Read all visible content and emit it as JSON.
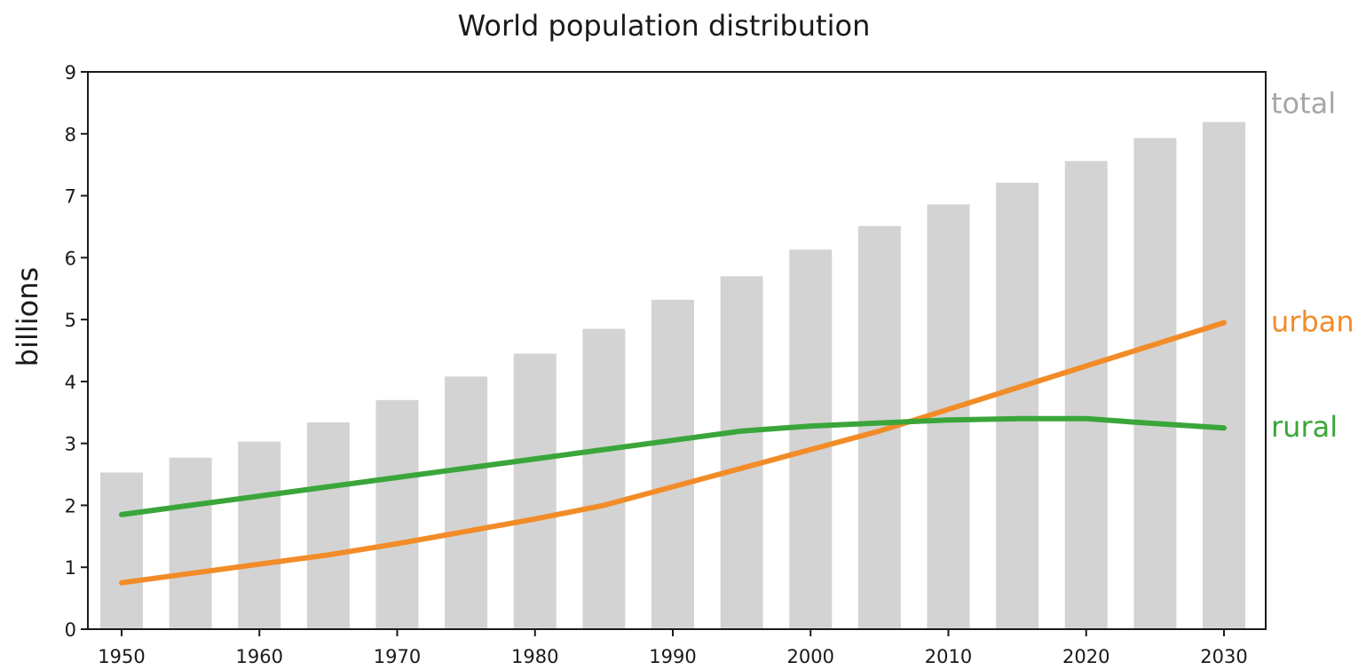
{
  "chart_data": {
    "type": "bar",
    "title": "World population distribution",
    "xlabel": "",
    "ylabel": "billions",
    "ylim": [
      0,
      9
    ],
    "xlim": [
      1948,
      2032
    ],
    "yticks": [
      0,
      1,
      2,
      3,
      4,
      5,
      6,
      7,
      8,
      9
    ],
    "xticks": [
      1950,
      1960,
      1970,
      1980,
      1990,
      2000,
      2010,
      2020,
      2030
    ],
    "grid": false,
    "legend": "right-side labels",
    "series": [
      {
        "name": "total",
        "kind": "bar",
        "color": "#d3d3d3",
        "x": [
          1950,
          1955,
          1960,
          1965,
          1970,
          1975,
          1980,
          1985,
          1990,
          1995,
          2000,
          2005,
          2010,
          2015,
          2020,
          2025,
          2030
        ],
        "values": [
          2.53,
          2.77,
          3.03,
          3.34,
          3.7,
          4.08,
          4.45,
          4.85,
          5.32,
          5.7,
          6.13,
          6.51,
          6.86,
          7.21,
          7.56,
          7.93,
          8.19
        ]
      },
      {
        "name": "urban",
        "kind": "line",
        "color": "#f28c28",
        "x": [
          1950,
          1955,
          1960,
          1965,
          1970,
          1975,
          1980,
          1985,
          1990,
          1995,
          2000,
          2005,
          2010,
          2015,
          2020,
          2025,
          2030
        ],
        "values": [
          0.75,
          0.9,
          1.05,
          1.2,
          1.38,
          1.58,
          1.78,
          2.0,
          2.3,
          2.6,
          2.9,
          3.2,
          3.55,
          3.9,
          4.25,
          4.6,
          4.95
        ]
      },
      {
        "name": "rural",
        "kind": "line",
        "color": "#3aa63a",
        "x": [
          1950,
          1955,
          1960,
          1965,
          1970,
          1975,
          1980,
          1985,
          1990,
          1995,
          2000,
          2005,
          2010,
          2015,
          2020,
          2025,
          2030
        ],
        "values": [
          1.85,
          2.0,
          2.15,
          2.3,
          2.45,
          2.6,
          2.75,
          2.9,
          3.05,
          3.2,
          3.28,
          3.33,
          3.38,
          3.4,
          3.4,
          3.32,
          3.25
        ]
      }
    ]
  }
}
